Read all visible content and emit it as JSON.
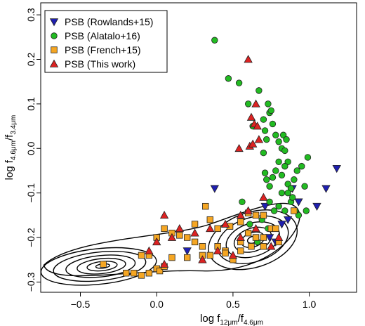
{
  "chart_data": {
    "type": "scatter",
    "xlabel": {
      "prefix": "log f",
      "sub1": "12μm",
      "mid": "/f",
      "sub2": "4.6μm"
    },
    "ylabel": {
      "prefix": "log f",
      "sub1": "4.6μm",
      "mid": "/f",
      "sub2": "3.4μm"
    },
    "xlim": [
      -0.76,
      1.31
    ],
    "ylim": [
      -0.323,
      0.327
    ],
    "xticks": [
      -0.5,
      0.0,
      0.5,
      1.0
    ],
    "xtick_labels": [
      "−0.5",
      "0.0",
      "0.5",
      "1.0"
    ],
    "yticks": [
      -0.3,
      -0.2,
      -0.1,
      0.0,
      0.1,
      0.2,
      0.3
    ],
    "ytick_labels": [
      "−0.3",
      "−0.2",
      "−0.1",
      "0.0",
      "0.1",
      "0.2",
      "0.3"
    ],
    "grid": false,
    "legend_position": "top-left",
    "series": [
      {
        "name": "PSB (Rowlands+15)",
        "marker": "triangle-down",
        "color": "#1f1fb0",
        "points": [
          [
            0.38,
            -0.09
          ],
          [
            0.71,
            -0.13
          ],
          [
            0.74,
            -0.2
          ],
          [
            0.78,
            -0.21
          ],
          [
            0.82,
            -0.17
          ],
          [
            0.89,
            -0.09
          ],
          [
            0.93,
            -0.12
          ],
          [
            1.05,
            -0.13
          ],
          [
            1.11,
            -0.09
          ],
          [
            1.18,
            -0.045
          ],
          [
            0.2,
            -0.23
          ],
          [
            0.86,
            -0.16
          ]
        ]
      },
      {
        "name": "PSB (Alatalo+16)",
        "marker": "circle",
        "color": "#22bb22",
        "points": [
          [
            0.38,
            0.243
          ],
          [
            0.47,
            0.157
          ],
          [
            0.54,
            0.147
          ],
          [
            0.6,
            0.1
          ],
          [
            0.63,
            0.05
          ],
          [
            0.67,
            0.13
          ],
          [
            0.7,
            0.065
          ],
          [
            0.71,
            0.04
          ],
          [
            0.72,
            0.02
          ],
          [
            0.73,
            0.1
          ],
          [
            0.74,
            0.08
          ],
          [
            0.75,
            0.085
          ],
          [
            0.76,
            0.055
          ],
          [
            0.78,
            0.03
          ],
          [
            0.8,
            0.015
          ],
          [
            0.82,
            0.0
          ],
          [
            0.83,
            0.03
          ],
          [
            0.84,
            -0.005
          ],
          [
            0.85,
            0.02
          ],
          [
            0.86,
            -0.03
          ],
          [
            0.7,
            -0.01
          ],
          [
            0.71,
            -0.055
          ],
          [
            0.72,
            -0.07
          ],
          [
            0.74,
            -0.085
          ],
          [
            0.76,
            -0.065
          ],
          [
            0.78,
            -0.05
          ],
          [
            0.8,
            -0.03
          ],
          [
            0.82,
            -0.06
          ],
          [
            0.84,
            -0.04
          ],
          [
            0.86,
            -0.08
          ],
          [
            0.88,
            -0.09
          ],
          [
            0.9,
            -0.07
          ],
          [
            0.92,
            -0.05
          ],
          [
            0.95,
            -0.04
          ],
          [
            0.97,
            -0.085
          ],
          [
            0.99,
            -0.02
          ],
          [
            0.74,
            -0.12
          ],
          [
            0.8,
            -0.13
          ],
          [
            0.84,
            -0.14
          ],
          [
            0.88,
            -0.12
          ],
          [
            0.91,
            -0.14
          ],
          [
            0.69,
            -0.16
          ],
          [
            0.73,
            -0.18
          ],
          [
            0.77,
            -0.14
          ],
          [
            0.82,
            -0.1
          ],
          [
            0.86,
            -0.1
          ],
          [
            0.66,
            -0.21
          ],
          [
            0.61,
            -0.17
          ],
          [
            0.89,
            -0.11
          ],
          [
            0.93,
            -0.15
          ],
          [
            0.56,
            -0.12
          ],
          [
            0.98,
            -0.14
          ]
        ]
      },
      {
        "name": "PSB (French+15)",
        "marker": "square",
        "color": "#f5a623",
        "points": [
          [
            -0.35,
            -0.26
          ],
          [
            -0.2,
            -0.28
          ],
          [
            -0.15,
            -0.28
          ],
          [
            -0.1,
            -0.285
          ],
          [
            -0.05,
            -0.28
          ],
          [
            0.0,
            -0.27
          ],
          [
            0.02,
            -0.275
          ],
          [
            0.05,
            -0.265
          ],
          [
            -0.1,
            -0.24
          ],
          [
            -0.05,
            -0.24
          ],
          [
            0.0,
            -0.2
          ],
          [
            0.05,
            -0.18
          ],
          [
            0.1,
            -0.19
          ],
          [
            0.15,
            -0.195
          ],
          [
            0.2,
            -0.2
          ],
          [
            0.25,
            -0.21
          ],
          [
            0.3,
            -0.22
          ],
          [
            0.35,
            -0.24
          ],
          [
            0.4,
            -0.22
          ],
          [
            0.45,
            -0.23
          ],
          [
            0.5,
            -0.25
          ],
          [
            0.55,
            -0.23
          ],
          [
            0.6,
            -0.19
          ],
          [
            0.65,
            -0.2
          ],
          [
            0.7,
            -0.22
          ],
          [
            0.75,
            -0.18
          ],
          [
            0.8,
            -0.21
          ],
          [
            0.32,
            -0.13
          ],
          [
            0.4,
            -0.18
          ],
          [
            0.48,
            -0.175
          ],
          [
            0.55,
            -0.165
          ],
          [
            0.6,
            -0.145
          ],
          [
            0.65,
            -0.15
          ],
          [
            0.7,
            -0.2
          ],
          [
            0.45,
            -0.235
          ],
          [
            0.3,
            -0.24
          ],
          [
            0.2,
            -0.245
          ],
          [
            0.1,
            -0.245
          ],
          [
            0.55,
            -0.21
          ],
          [
            0.7,
            -0.15
          ],
          [
            0.78,
            -0.18
          ],
          [
            0.62,
            -0.22
          ],
          [
            0.35,
            -0.16
          ],
          [
            0.25,
            -0.17
          ],
          [
            0.9,
            -0.14
          ]
        ]
      },
      {
        "name": "PSB (This work)",
        "marker": "triangle-up",
        "color": "#dd2222",
        "points": [
          [
            0.6,
            0.2
          ],
          [
            0.65,
            0.1
          ],
          [
            0.62,
            0.07
          ],
          [
            0.64,
            0.055
          ],
          [
            0.66,
            0.05
          ],
          [
            0.54,
            0.0
          ],
          [
            0.61,
            0.005
          ],
          [
            0.63,
            0.01
          ],
          [
            0.67,
            0.02
          ],
          [
            0.6,
            -0.14
          ],
          [
            0.7,
            -0.11
          ],
          [
            0.55,
            -0.15
          ],
          [
            0.45,
            -0.17
          ],
          [
            0.35,
            -0.18
          ],
          [
            0.25,
            -0.19
          ],
          [
            0.15,
            -0.18
          ],
          [
            0.1,
            -0.2
          ],
          [
            0.05,
            -0.15
          ],
          [
            0.0,
            -0.21
          ],
          [
            -0.05,
            -0.23
          ],
          [
            0.05,
            -0.26
          ],
          [
            0.65,
            -0.18
          ],
          [
            0.75,
            -0.22
          ],
          [
            0.4,
            -0.23
          ],
          [
            0.3,
            -0.25
          ],
          [
            0.55,
            -0.2
          ],
          [
            0.5,
            -0.24
          ],
          [
            0.8,
            -0.2
          ]
        ]
      }
    ],
    "contours": {
      "color": "#000000",
      "centers": [
        {
          "x": -0.38,
          "y": -0.265,
          "rx_max": 0.38,
          "ry_max": 0.04
        },
        {
          "x": 0.63,
          "y": -0.205,
          "rx_max": 0.3,
          "ry_max": 0.062
        }
      ]
    }
  }
}
